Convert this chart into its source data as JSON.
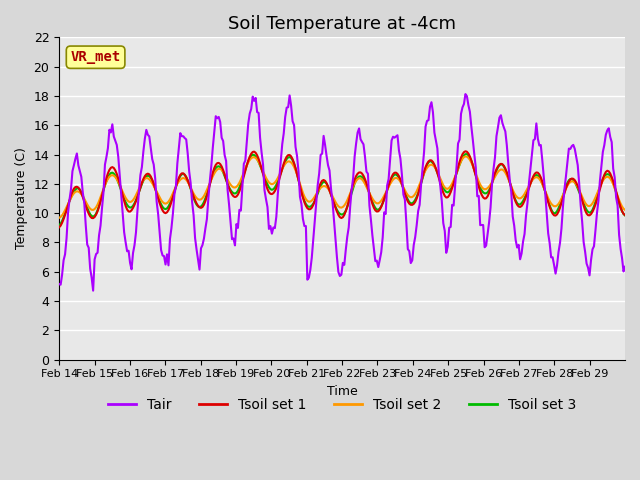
{
  "title": "Soil Temperature at -4cm",
  "xlabel": "Time",
  "ylabel": "Temperature (C)",
  "ylim": [
    0,
    22
  ],
  "yticks": [
    0,
    2,
    4,
    6,
    8,
    10,
    12,
    14,
    16,
    18,
    20,
    22
  ],
  "xtick_labels": [
    "Feb 14",
    "Feb 15",
    "Feb 16",
    "Feb 17",
    "Feb 18",
    "Feb 19",
    "Feb 20",
    "Feb 21",
    "Feb 22",
    "Feb 23",
    "Feb 24",
    "Feb 25",
    "Feb 26",
    "Feb 27",
    "Feb 28",
    "Feb 29"
  ],
  "line_colors": {
    "Tair": "#aa00ff",
    "Tsoil set 1": "#dd0000",
    "Tsoil set 2": "#ff9900",
    "Tsoil set 3": "#00bb00"
  },
  "line_widths": {
    "Tair": 1.5,
    "Tsoil set 1": 1.5,
    "Tsoil set 2": 1.5,
    "Tsoil set 3": 1.5
  },
  "annotation_text": "VR_met",
  "annotation_color": "#aa0000",
  "annotation_bg": "#ffff99",
  "plot_bg_color": "#e8e8e8",
  "fig_bg_color": "#d8d8d8",
  "grid_color": "#ffffff",
  "title_fontsize": 13,
  "legend_fontsize": 10,
  "axis_fontsize": 9
}
